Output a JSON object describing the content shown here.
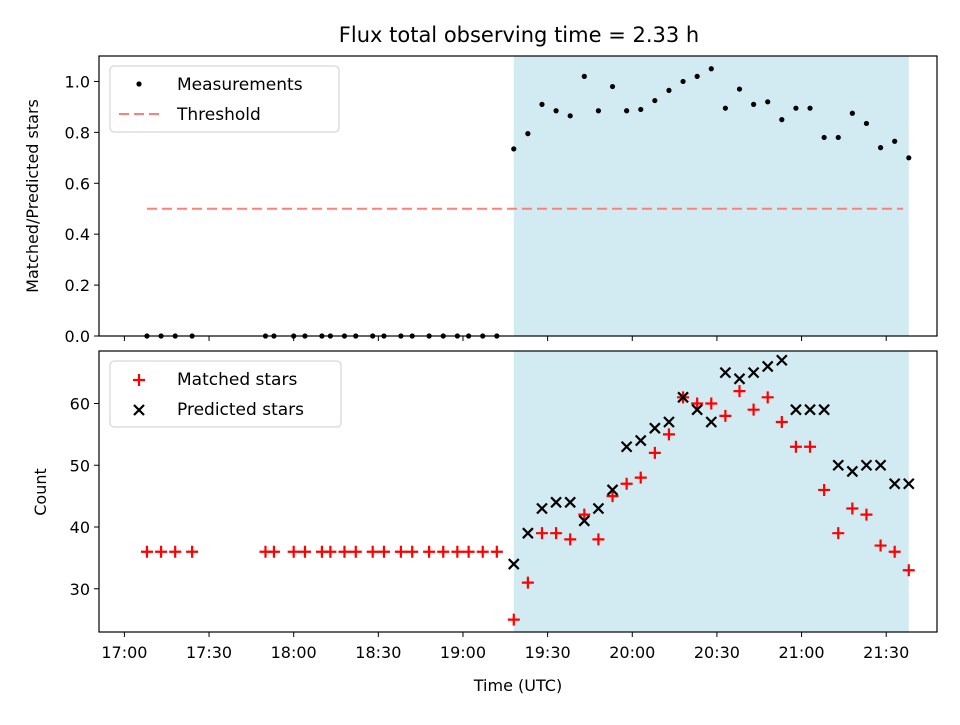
{
  "chart_data": [
    {
      "type": "scatter",
      "title": "Flux total observing time = 2.33 h",
      "ylabel": "Matched/Predicted stars",
      "xlim": [
        "16:51",
        "21:48"
      ],
      "ylim": [
        0.0,
        1.1
      ],
      "yticks": [
        "0.0",
        "0.2",
        "0.4",
        "0.6",
        "0.8",
        "1.0"
      ],
      "legend_position": "upper-left",
      "shaded_region": {
        "x_start": "19:18",
        "x_end": "21:38",
        "color": "#add8e6"
      },
      "series": [
        {
          "name": "Measurements",
          "marker": "dot",
          "color": "#000000",
          "x": [
            "17:08",
            "17:13",
            "17:18",
            "17:24",
            "17:50",
            "17:53",
            "18:00",
            "18:04",
            "18:10",
            "18:13",
            "18:18",
            "18:22",
            "18:28",
            "18:32",
            "18:38",
            "18:42",
            "18:48",
            "18:53",
            "18:58",
            "19:02",
            "19:07",
            "19:12",
            "19:18",
            "19:23",
            "19:28",
            "19:33",
            "19:38",
            "19:43",
            "19:48",
            "19:53",
            "19:58",
            "20:03",
            "20:08",
            "20:13",
            "20:18",
            "20:23",
            "20:28",
            "20:33",
            "20:38",
            "20:43",
            "20:48",
            "20:53",
            "20:58",
            "21:03",
            "21:08",
            "21:13",
            "21:18",
            "21:23",
            "21:28",
            "21:33",
            "21:38"
          ],
          "y": [
            0,
            0,
            0,
            0,
            0,
            0,
            0,
            0,
            0,
            0,
            0,
            0,
            0,
            0,
            0,
            0,
            0,
            0,
            0,
            0,
            0,
            0,
            0.735,
            0.795,
            0.91,
            0.885,
            0.865,
            1.02,
            0.885,
            0.98,
            0.885,
            0.89,
            0.925,
            0.965,
            1.0,
            1.02,
            1.05,
            0.895,
            0.97,
            0.91,
            0.92,
            0.85,
            0.895,
            0.895,
            0.78,
            0.78,
            0.875,
            0.835,
            0.74,
            0.765,
            0.7
          ]
        },
        {
          "name": "Threshold",
          "marker": "dashed-line",
          "color": "#ff7f7f",
          "x": [
            "17:08",
            "21:36"
          ],
          "y": [
            0.5,
            0.5
          ]
        }
      ]
    },
    {
      "type": "scatter",
      "xlabel": "Time (UTC)",
      "ylabel": "Count",
      "xlim": [
        "16:51",
        "21:48"
      ],
      "ylim": [
        23,
        68.5
      ],
      "yticks": [
        "30",
        "40",
        "50",
        "60"
      ],
      "xticks": [
        "17:00",
        "17:30",
        "18:00",
        "18:30",
        "19:00",
        "19:30",
        "20:00",
        "20:30",
        "21:00",
        "21:30"
      ],
      "legend_position": "upper-left",
      "shaded_region": {
        "x_start": "19:18",
        "x_end": "21:38",
        "color": "#add8e6"
      },
      "series": [
        {
          "name": "Matched stars",
          "marker": "plus",
          "color": "#ff0000",
          "x": [
            "17:08",
            "17:13",
            "17:18",
            "17:24",
            "17:50",
            "17:53",
            "18:00",
            "18:04",
            "18:10",
            "18:13",
            "18:18",
            "18:22",
            "18:28",
            "18:32",
            "18:38",
            "18:42",
            "18:48",
            "18:53",
            "18:58",
            "19:02",
            "19:07",
            "19:12",
            "19:18",
            "19:23",
            "19:28",
            "19:33",
            "19:38",
            "19:43",
            "19:48",
            "19:53",
            "19:58",
            "20:03",
            "20:08",
            "20:13",
            "20:18",
            "20:23",
            "20:28",
            "20:33",
            "20:38",
            "20:43",
            "20:48",
            "20:53",
            "20:58",
            "21:03",
            "21:08",
            "21:13",
            "21:18",
            "21:23",
            "21:28",
            "21:33",
            "21:38"
          ],
          "y": [
            36,
            36,
            36,
            36,
            36,
            36,
            36,
            36,
            36,
            36,
            36,
            36,
            36,
            36,
            36,
            36,
            36,
            36,
            36,
            36,
            36,
            36,
            25,
            31,
            39,
            39,
            38,
            42,
            38,
            45,
            47,
            48,
            52,
            55,
            61,
            60,
            60,
            58,
            62,
            59,
            61,
            57,
            53,
            53,
            46,
            39,
            43,
            42,
            37,
            36,
            33
          ]
        },
        {
          "name": "Predicted stars",
          "marker": "x",
          "color": "#000000",
          "x": [
            "19:18",
            "19:23",
            "19:28",
            "19:33",
            "19:38",
            "19:43",
            "19:48",
            "19:53",
            "19:58",
            "20:03",
            "20:08",
            "20:13",
            "20:18",
            "20:23",
            "20:28",
            "20:33",
            "20:38",
            "20:43",
            "20:48",
            "20:53",
            "20:58",
            "21:03",
            "21:08",
            "21:13",
            "21:18",
            "21:23",
            "21:28",
            "21:33",
            "21:38"
          ],
          "y": [
            34,
            39,
            43,
            44,
            44,
            41,
            43,
            46,
            53,
            54,
            56,
            57,
            61,
            59,
            57,
            65,
            64,
            65,
            66,
            67,
            59,
            59,
            59,
            50,
            49,
            50,
            50,
            47,
            47
          ]
        }
      ]
    }
  ]
}
